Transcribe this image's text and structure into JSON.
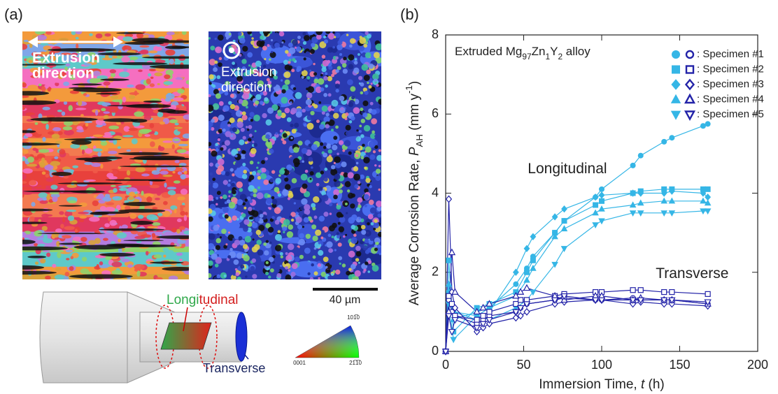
{
  "panel_a": {
    "label": "(a)",
    "extrusion_left": [
      "Extrusion",
      "direction"
    ],
    "extrusion_right": [
      "Extrusion",
      "direction"
    ],
    "scale_bar": "40 µm",
    "longitudinal": [
      "Longi",
      "tudinal"
    ],
    "transverse": "Transverse",
    "ipf_labels": [
      "101̅0",
      "0001",
      "21̅1̅0"
    ]
  },
  "chart_data": {
    "type": "line",
    "panel_label": "(b)",
    "title_parts": [
      "Extruded Mg",
      "97",
      "Zn",
      "1",
      "Y",
      "2",
      " alloy"
    ],
    "x_label_parts": [
      "Immersion Time, ",
      "t",
      " (h)"
    ],
    "y_label_parts": [
      "Average Corrosion Rate, ",
      "P",
      "AH",
      " (mm y",
      "-1",
      ")"
    ],
    "annotations": [
      "Longitudinal",
      "Transverse"
    ],
    "xlim": [
      0,
      200
    ],
    "xticks": [
      0,
      50,
      100,
      150,
      200
    ],
    "ylim": [
      0,
      8
    ],
    "yticks": [
      0,
      2,
      4,
      6,
      8
    ],
    "series": [
      {
        "name": ": Specimen #1",
        "color": "#35b6e6",
        "marker": "circle",
        "filled": true,
        "x": [
          0,
          2,
          5,
          20,
          28,
          45,
          52,
          56,
          70,
          76,
          96,
          100,
          120,
          125,
          140,
          145,
          165,
          168
        ],
        "values": [
          0,
          1.5,
          1.0,
          0.9,
          1.1,
          1.7,
          2.1,
          2.4,
          3.0,
          3.3,
          3.9,
          4.1,
          4.7,
          4.95,
          5.3,
          5.4,
          5.7,
          5.75
        ]
      },
      {
        "name": ": Specimen #2",
        "color": "#35b6e6",
        "marker": "square",
        "filled": true,
        "x": [
          0,
          2,
          5,
          20,
          28,
          45,
          52,
          56,
          70,
          76,
          96,
          100,
          120,
          125,
          140,
          145,
          165,
          168
        ],
        "values": [
          0,
          2.3,
          0.5,
          1.1,
          1.2,
          1.5,
          2.0,
          2.3,
          3.0,
          3.3,
          3.7,
          3.8,
          4.0,
          4.05,
          4.1,
          4.1,
          4.1,
          4.1
        ]
      },
      {
        "name": ": Specimen #3",
        "color": "#35b6e6",
        "marker": "diamond",
        "filled": true,
        "x": [
          0,
          2,
          5,
          20,
          28,
          45,
          52,
          56,
          70,
          76,
          96,
          100,
          120,
          125,
          140,
          145,
          165,
          168
        ],
        "values": [
          0,
          1.3,
          1.0,
          0.8,
          1.0,
          2.0,
          2.6,
          2.9,
          3.4,
          3.6,
          3.9,
          3.95,
          4.0,
          4.0,
          4.0,
          4.05,
          4.0,
          3.9
        ]
      },
      {
        "name": ": Specimen #4",
        "color": "#35b6e6",
        "marker": "triangle-up",
        "filled": true,
        "x": [
          0,
          2,
          5,
          20,
          28,
          45,
          52,
          56,
          70,
          76,
          96,
          100,
          120,
          125,
          140,
          145,
          165,
          168
        ],
        "values": [
          0,
          1.7,
          0.8,
          1.0,
          1.1,
          1.4,
          1.8,
          2.1,
          2.9,
          3.1,
          3.5,
          3.6,
          3.7,
          3.75,
          3.8,
          3.8,
          3.8,
          3.75
        ]
      },
      {
        "name": ": Specimen #5",
        "color": "#35b6e6",
        "marker": "triangle-down",
        "filled": true,
        "x": [
          0,
          2,
          5,
          20,
          28,
          45,
          52,
          56,
          70,
          76,
          96,
          100,
          120,
          125,
          140,
          145,
          165,
          168
        ],
        "values": [
          0,
          1.2,
          0.3,
          0.9,
          0.8,
          1.1,
          1.3,
          1.5,
          2.2,
          2.6,
          3.2,
          3.3,
          3.5,
          3.5,
          3.5,
          3.5,
          3.55,
          3.55
        ]
      },
      {
        "name": ": Specimen #1",
        "color": "#2323a8",
        "marker": "circle",
        "filled": false,
        "x": [
          0,
          2,
          4,
          6,
          20,
          24,
          28,
          45,
          48,
          52,
          70,
          76,
          96,
          100,
          120,
          125,
          140,
          145,
          168
        ],
        "values": [
          0,
          1.3,
          1.0,
          0.9,
          0.7,
          0.8,
          0.9,
          1.0,
          1.1,
          1.2,
          1.3,
          1.35,
          1.3,
          1.3,
          1.35,
          1.3,
          1.3,
          1.3,
          1.2
        ]
      },
      {
        "name": ": Specimen #2",
        "color": "#2323a8",
        "marker": "square",
        "filled": false,
        "x": [
          0,
          2,
          4,
          6,
          20,
          24,
          28,
          45,
          48,
          52,
          70,
          76,
          96,
          100,
          120,
          125,
          140,
          145,
          168
        ],
        "values": [
          0,
          1.4,
          1.2,
          0.9,
          0.8,
          0.9,
          1.0,
          1.2,
          1.3,
          1.3,
          1.4,
          1.45,
          1.5,
          1.5,
          1.55,
          1.55,
          1.5,
          1.5,
          1.45
        ]
      },
      {
        "name": ": Specimen #3",
        "color": "#2323a8",
        "marker": "diamond",
        "filled": false,
        "x": [
          0,
          2,
          4,
          6,
          20,
          24,
          28,
          45,
          48,
          52,
          70,
          76,
          96,
          100,
          120,
          125,
          140,
          145,
          168
        ],
        "values": [
          0,
          3.85,
          1.5,
          1.1,
          0.5,
          0.6,
          0.7,
          0.85,
          0.9,
          1.0,
          1.2,
          1.25,
          1.3,
          1.3,
          1.2,
          1.25,
          1.2,
          1.2,
          1.15
        ]
      },
      {
        "name": ": Specimen #4",
        "color": "#2323a8",
        "marker": "triangle-up",
        "filled": false,
        "x": [
          0,
          2,
          4,
          6,
          20,
          24,
          28,
          45,
          48,
          52,
          70,
          76,
          96,
          100,
          120,
          125,
          140,
          145,
          168
        ],
        "values": [
          0,
          1.0,
          2.5,
          1.5,
          1.0,
          1.1,
          1.2,
          1.4,
          1.5,
          1.6,
          1.4,
          1.3,
          1.4,
          1.4,
          1.3,
          1.35,
          1.3,
          1.3,
          1.2
        ]
      },
      {
        "name": ": Specimen #5",
        "color": "#2323a8",
        "marker": "triangle-down",
        "filled": false,
        "x": [
          0,
          2,
          4,
          6,
          20,
          24,
          28,
          45,
          48,
          52,
          70,
          76,
          96,
          100,
          120,
          125,
          140,
          145,
          168
        ],
        "values": [
          0,
          0.9,
          0.5,
          0.8,
          0.6,
          0.7,
          0.8,
          1.0,
          1.1,
          1.2,
          1.3,
          1.4,
          1.3,
          1.3,
          1.3,
          1.3,
          1.3,
          1.3,
          1.25
        ]
      }
    ]
  }
}
